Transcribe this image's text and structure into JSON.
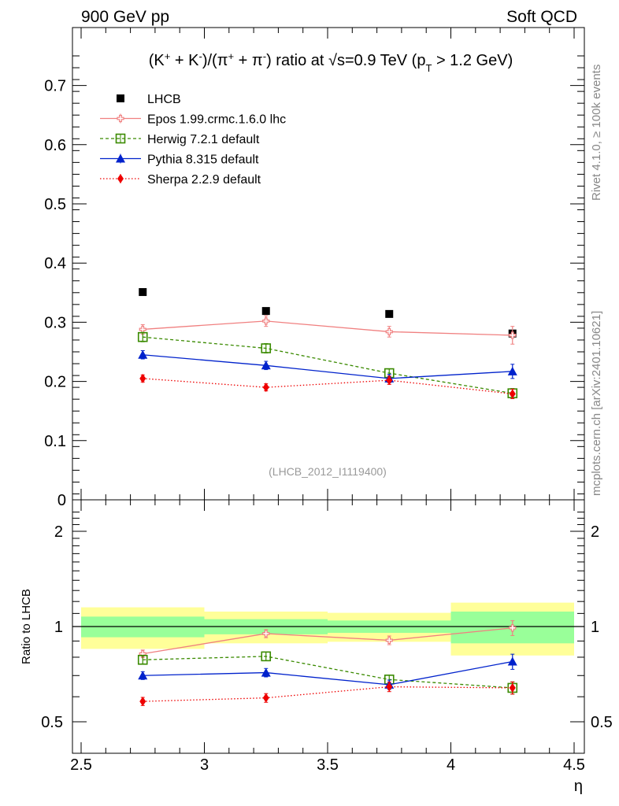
{
  "header": {
    "left": "900 GeV pp",
    "right": "Soft QCD"
  },
  "side_labels": {
    "rivet": "Rivet 4.1.0, ≥ 100k events",
    "mcplots": "mcplots.cern.ch [arXiv:2401.10621]"
  },
  "chart_data": {
    "type": "scatter",
    "title": "(K⁺ + K⁻)/(π⁺ + π⁻) ratio at √s=0.9 TeV (p_T > 1.2 GeV)",
    "watermark": "(LHCB_2012_I1119400)",
    "xlabel": "η",
    "ylabel_ratio": "Ratio to LHCB",
    "xlim": [
      2.5,
      4.5
    ],
    "ylim_main": [
      0,
      0.77
    ],
    "ylim_ratio": [
      0.4,
      2.35
    ],
    "x_ticks": [
      "2.5",
      "3",
      "3.5",
      "4",
      "4.5"
    ],
    "y_ticks_main": [
      "0",
      "0.1",
      "0.2",
      "0.3",
      "0.4",
      "0.5",
      "0.6",
      "0.7"
    ],
    "y_ticks_ratio": [
      "0.5",
      "1",
      "2"
    ],
    "x": [
      2.75,
      3.25,
      3.75,
      4.25
    ],
    "data_series": {
      "name": "LHCB",
      "values": [
        0.351,
        0.319,
        0.314,
        0.281
      ],
      "stat_band_rel": [
        0.075,
        0.055,
        0.045,
        0.115
      ],
      "total_band_rel": [
        0.15,
        0.115,
        0.105,
        0.19
      ]
    },
    "series": [
      {
        "name": "Epos 1.99.crmc.1.6.0 lhc",
        "color": "#f08080",
        "marker": "open-cross",
        "dash": "",
        "values": [
          0.288,
          0.302,
          0.284,
          0.278
        ],
        "errors": [
          0.008,
          0.009,
          0.009,
          0.015
        ],
        "ratio": [
          0.82,
          0.95,
          0.905,
          0.99
        ]
      },
      {
        "name": "Herwig 7.2.1 default",
        "color": "#3a8a00",
        "marker": "open-square",
        "dash": "4,3",
        "values": [
          0.275,
          0.256,
          0.214,
          0.18
        ],
        "errors": [
          0.008,
          0.008,
          0.007,
          0.008
        ],
        "ratio": [
          0.785,
          0.805,
          0.68,
          0.64
        ]
      },
      {
        "name": "Pythia 8.315 default",
        "color": "#0022cc",
        "marker": "filled-triangle",
        "dash": "",
        "values": [
          0.245,
          0.227,
          0.205,
          0.217
        ],
        "errors": [
          0.007,
          0.007,
          0.007,
          0.012
        ],
        "ratio": [
          0.7,
          0.715,
          0.655,
          0.775
        ]
      },
      {
        "name": "Sherpa 2.2.9 default",
        "color": "#ee0000",
        "marker": "filled-diamond",
        "dash": "1.5,2.5",
        "values": [
          0.205,
          0.19,
          0.202,
          0.179
        ],
        "errors": [
          0.006,
          0.006,
          0.007,
          0.008
        ],
        "ratio": [
          0.58,
          0.595,
          0.645,
          0.64
        ]
      }
    ]
  }
}
